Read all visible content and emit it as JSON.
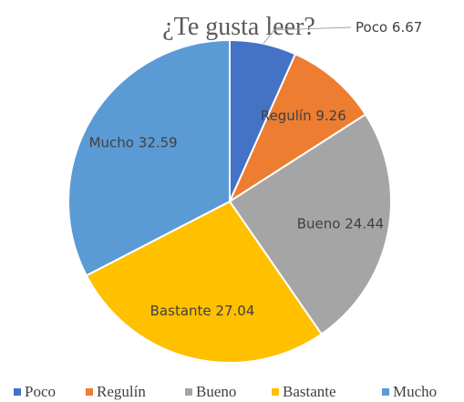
{
  "chart_data": {
    "type": "pie",
    "title": "¿Te gusta leer?",
    "categories": [
      "Poco",
      "Regulín",
      "Bueno",
      "Bastante",
      "Mucho"
    ],
    "values": [
      6.67,
      9.26,
      24.44,
      27.04,
      32.59
    ],
    "colors": [
      "#4472c4",
      "#ed7d31",
      "#a5a5a5",
      "#ffc000",
      "#5b9bd5"
    ],
    "legend": "bottom"
  }
}
